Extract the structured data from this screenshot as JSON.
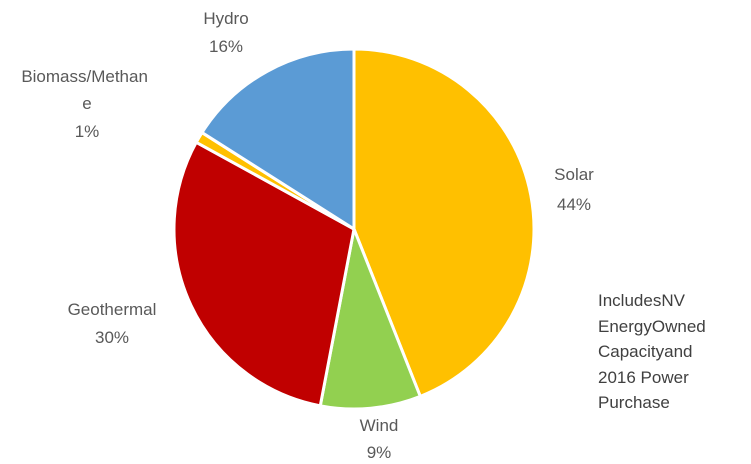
{
  "chart_data": {
    "type": "pie",
    "title": "",
    "start_angle_deg": 0,
    "direction": "clockwise",
    "slices": [
      {
        "category": "Solar",
        "value": 44,
        "label": "44%",
        "color": "#FFC000"
      },
      {
        "category": "Wind",
        "value": 9,
        "label": "9%",
        "color": "#92D050"
      },
      {
        "category": "Geothermal",
        "value": 30,
        "label": "30%",
        "color": "#C00000"
      },
      {
        "category": "Biomass/Methane",
        "value": 1,
        "label": "1%",
        "color": "#FFC000"
      },
      {
        "category": "Hydro",
        "value": 16,
        "label": "16%",
        "color": "#5B9BD5"
      }
    ]
  },
  "note": {
    "lines": [
      "IncludesNV",
      "EnergyOwned",
      "Capacityand",
      "2016 Power",
      "Purchase"
    ]
  }
}
